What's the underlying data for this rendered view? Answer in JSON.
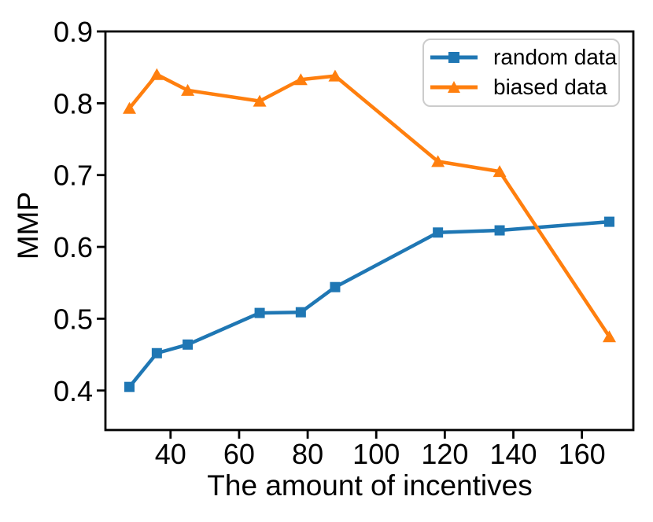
{
  "chart_data": {
    "type": "line",
    "xlabel": "The amount of incentives",
    "ylabel": "MMP",
    "x": [
      28,
      36,
      45,
      66,
      78,
      88,
      118,
      136,
      168
    ],
    "series": [
      {
        "name": "random data",
        "color": "#1f77b4",
        "marker": "square",
        "values": [
          0.405,
          0.452,
          0.464,
          0.508,
          0.509,
          0.544,
          0.62,
          0.623,
          0.635
        ]
      },
      {
        "name": "biased data",
        "color": "#ff7f0e",
        "marker": "triangle-up",
        "values": [
          0.793,
          0.84,
          0.818,
          0.803,
          0.833,
          0.838,
          0.719,
          0.705,
          0.475
        ]
      }
    ],
    "xlim": [
      21,
      175
    ],
    "ylim": [
      0.345,
      0.9
    ],
    "xticks": {
      "values": [
        40,
        60,
        80,
        100,
        120,
        140,
        160
      ],
      "labels": [
        "40",
        "60",
        "80",
        "100",
        "120",
        "140",
        "160"
      ]
    },
    "yticks": {
      "values": [
        0.4,
        0.5,
        0.6,
        0.7,
        0.8,
        0.9
      ],
      "labels": [
        "0.4",
        "0.5",
        "0.6",
        "0.7",
        "0.8",
        "0.9"
      ]
    },
    "grid": false,
    "legend": {
      "position": "upper right"
    },
    "axis_color": "#000000",
    "text_color": "#000000",
    "legend_border_color": "#cccccc",
    "background_color": "#ffffff"
  }
}
